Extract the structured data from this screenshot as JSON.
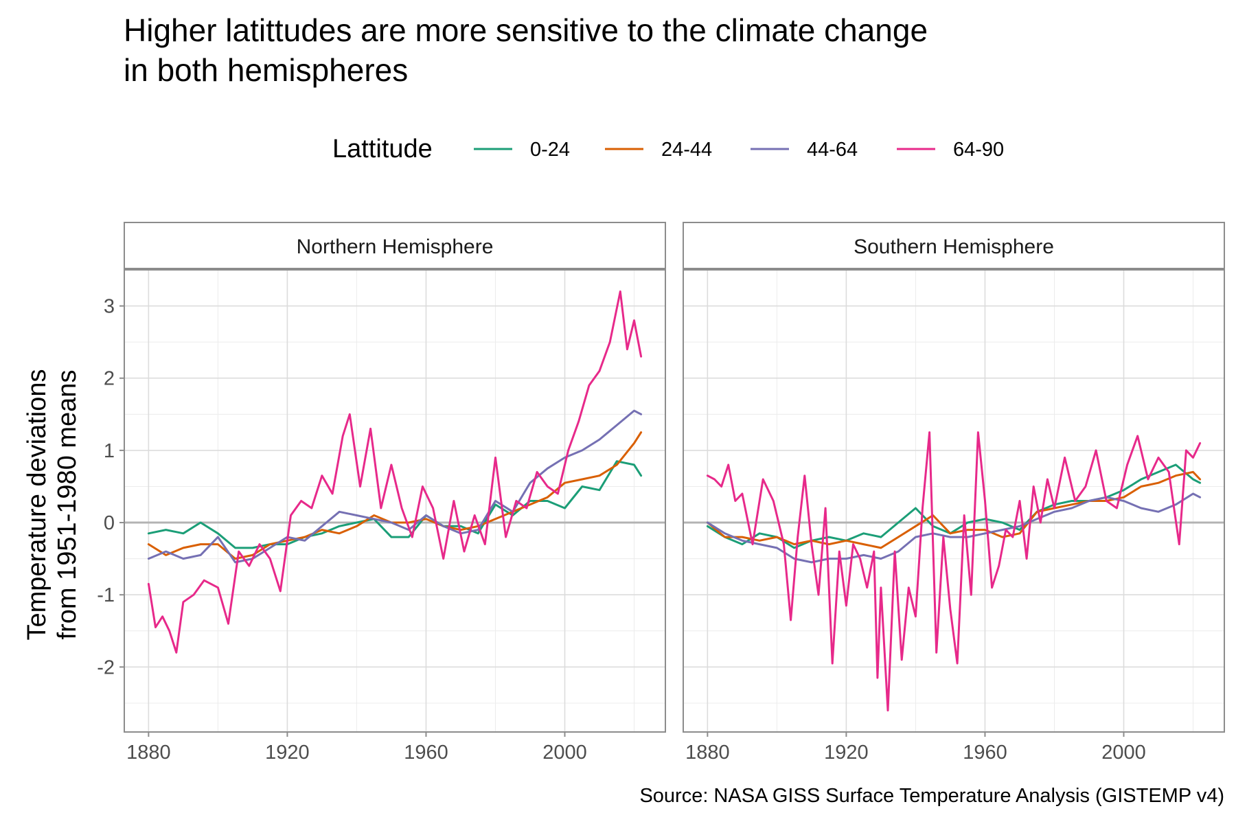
{
  "chart_data": {
    "type": "line",
    "title": [
      "Higher latittudes are more sensitive to the climate change",
      "in both hemispheres"
    ],
    "ylabel": [
      "Temperature deviations",
      "from 1951-1980 means"
    ],
    "xlabel": "",
    "caption": "Source: NASA GISS Surface Temperature Analysis (GISTEMP v4)",
    "legend": {
      "title": "Lattitude",
      "position": "top",
      "entries": [
        "0-24",
        "24-44",
        "44-64",
        "64-90"
      ]
    },
    "colors": {
      "0-24": "#1B9E77",
      "24-44": "#D95F02",
      "44-64": "#7570B3",
      "64-90": "#E7298A"
    },
    "xlim": [
      1873,
      2029
    ],
    "ylim": [
      -2.9,
      3.5
    ],
    "x_ticks": [
      1880,
      1920,
      1960,
      2000
    ],
    "y_ticks": [
      -2,
      -1,
      0,
      1,
      2,
      3
    ],
    "reference_line": 0,
    "grid": true,
    "panels": [
      {
        "name": "Northern Hemisphere",
        "series": [
          {
            "name": "0-24",
            "x": [
              1880,
              1885,
              1890,
              1895,
              1900,
              1905,
              1910,
              1915,
              1920,
              1925,
              1930,
              1935,
              1940,
              1945,
              1950,
              1955,
              1960,
              1965,
              1970,
              1975,
              1980,
              1985,
              1990,
              1995,
              2000,
              2005,
              2010,
              2015,
              2020,
              2022
            ],
            "values": [
              -0.15,
              -0.1,
              -0.15,
              0.0,
              -0.15,
              -0.35,
              -0.35,
              -0.3,
              -0.3,
              -0.2,
              -0.15,
              -0.05,
              0.0,
              0.05,
              -0.2,
              -0.2,
              0.1,
              -0.05,
              -0.05,
              -0.15,
              0.25,
              0.1,
              0.3,
              0.3,
              0.2,
              0.5,
              0.45,
              0.85,
              0.8,
              0.65
            ]
          },
          {
            "name": "24-44",
            "x": [
              1880,
              1885,
              1890,
              1895,
              1900,
              1905,
              1910,
              1915,
              1920,
              1925,
              1930,
              1935,
              1940,
              1945,
              1950,
              1955,
              1960,
              1965,
              1970,
              1975,
              1980,
              1985,
              1990,
              1995,
              2000,
              2005,
              2010,
              2015,
              2020,
              2022
            ],
            "values": [
              -0.3,
              -0.45,
              -0.35,
              -0.3,
              -0.3,
              -0.5,
              -0.45,
              -0.3,
              -0.25,
              -0.2,
              -0.1,
              -0.15,
              -0.05,
              0.1,
              0.0,
              0.0,
              0.05,
              -0.05,
              -0.1,
              -0.05,
              0.05,
              0.15,
              0.25,
              0.35,
              0.55,
              0.6,
              0.65,
              0.8,
              1.1,
              1.25
            ]
          },
          {
            "name": "44-64",
            "x": [
              1880,
              1885,
              1890,
              1895,
              1900,
              1905,
              1910,
              1915,
              1920,
              1925,
              1930,
              1935,
              1940,
              1945,
              1950,
              1955,
              1960,
              1965,
              1970,
              1975,
              1980,
              1985,
              1990,
              1995,
              2000,
              2005,
              2010,
              2015,
              2020,
              2022
            ],
            "values": [
              -0.5,
              -0.4,
              -0.5,
              -0.45,
              -0.2,
              -0.55,
              -0.5,
              -0.35,
              -0.2,
              -0.25,
              -0.05,
              0.15,
              0.1,
              0.05,
              0.0,
              -0.1,
              0.1,
              -0.05,
              -0.15,
              -0.1,
              0.3,
              0.15,
              0.55,
              0.75,
              0.9,
              1.0,
              1.15,
              1.35,
              1.55,
              1.5
            ]
          },
          {
            "name": "64-90",
            "x": [
              1880,
              1882,
              1884,
              1886,
              1888,
              1890,
              1893,
              1896,
              1900,
              1903,
              1906,
              1909,
              1912,
              1915,
              1918,
              1921,
              1924,
              1927,
              1930,
              1933,
              1936,
              1938,
              1941,
              1944,
              1947,
              1950,
              1953,
              1956,
              1959,
              1962,
              1965,
              1968,
              1971,
              1974,
              1977,
              1980,
              1983,
              1986,
              1989,
              1992,
              1995,
              1998,
              2001,
              2004,
              2007,
              2010,
              2013,
              2016,
              2018,
              2020,
              2022
            ],
            "values": [
              -0.85,
              -1.45,
              -1.3,
              -1.5,
              -1.8,
              -1.1,
              -1.0,
              -0.8,
              -0.9,
              -1.4,
              -0.4,
              -0.6,
              -0.3,
              -0.5,
              -0.95,
              0.1,
              0.3,
              0.2,
              0.65,
              0.4,
              1.2,
              1.5,
              0.5,
              1.3,
              0.2,
              0.8,
              0.2,
              -0.2,
              0.5,
              0.2,
              -0.5,
              0.3,
              -0.4,
              0.1,
              -0.3,
              0.9,
              -0.2,
              0.3,
              0.2,
              0.7,
              0.5,
              0.4,
              1.0,
              1.4,
              1.9,
              2.1,
              2.5,
              3.2,
              2.4,
              2.8,
              2.3
            ]
          }
        ]
      },
      {
        "name": "Southern Hemisphere",
        "series": [
          {
            "name": "0-24",
            "x": [
              1880,
              1885,
              1890,
              1895,
              1900,
              1905,
              1910,
              1915,
              1920,
              1925,
              1930,
              1935,
              1940,
              1945,
              1950,
              1955,
              1960,
              1965,
              1970,
              1975,
              1980,
              1985,
              1990,
              1995,
              2000,
              2005,
              2010,
              2015,
              2020,
              2022
            ],
            "values": [
              -0.05,
              -0.2,
              -0.3,
              -0.15,
              -0.2,
              -0.35,
              -0.25,
              -0.2,
              -0.25,
              -0.15,
              -0.2,
              0.0,
              0.2,
              -0.05,
              -0.15,
              0.0,
              0.05,
              0.0,
              -0.1,
              0.15,
              0.25,
              0.3,
              0.3,
              0.35,
              0.45,
              0.6,
              0.7,
              0.8,
              0.6,
              0.55
            ]
          },
          {
            "name": "24-44",
            "x": [
              1880,
              1885,
              1890,
              1895,
              1900,
              1905,
              1910,
              1915,
              1920,
              1925,
              1930,
              1935,
              1940,
              1945,
              1950,
              1955,
              1960,
              1965,
              1970,
              1975,
              1980,
              1985,
              1990,
              1995,
              2000,
              2005,
              2010,
              2015,
              2020,
              2022
            ],
            "values": [
              0.0,
              -0.2,
              -0.2,
              -0.25,
              -0.2,
              -0.3,
              -0.25,
              -0.3,
              -0.25,
              -0.3,
              -0.35,
              -0.2,
              -0.05,
              0.1,
              -0.15,
              -0.1,
              -0.1,
              -0.2,
              -0.15,
              0.15,
              0.2,
              0.25,
              0.3,
              0.3,
              0.35,
              0.5,
              0.55,
              0.65,
              0.7,
              0.6
            ]
          },
          {
            "name": "44-64",
            "x": [
              1880,
              1885,
              1890,
              1895,
              1900,
              1905,
              1910,
              1915,
              1920,
              1925,
              1930,
              1935,
              1940,
              1945,
              1950,
              1955,
              1960,
              1965,
              1970,
              1975,
              1980,
              1985,
              1990,
              1995,
              2000,
              2005,
              2010,
              2015,
              2020,
              2022
            ],
            "values": [
              0.0,
              -0.15,
              -0.25,
              -0.3,
              -0.35,
              -0.5,
              -0.55,
              -0.5,
              -0.5,
              -0.45,
              -0.5,
              -0.4,
              -0.2,
              -0.15,
              -0.2,
              -0.2,
              -0.15,
              -0.1,
              -0.05,
              0.05,
              0.15,
              0.2,
              0.3,
              0.35,
              0.3,
              0.2,
              0.15,
              0.25,
              0.4,
              0.35
            ]
          },
          {
            "name": "64-90",
            "x": [
              1880,
              1882,
              1884,
              1886,
              1888,
              1890,
              1893,
              1896,
              1899,
              1902,
              1904,
              1906,
              1908,
              1910,
              1912,
              1914,
              1916,
              1918,
              1920,
              1922,
              1924,
              1926,
              1928,
              1929,
              1930,
              1932,
              1934,
              1936,
              1938,
              1940,
              1942,
              1944,
              1946,
              1948,
              1950,
              1952,
              1954,
              1956,
              1958,
              1960,
              1962,
              1964,
              1966,
              1968,
              1970,
              1972,
              1974,
              1976,
              1978,
              1980,
              1983,
              1986,
              1989,
              1992,
              1995,
              1998,
              2001,
              2004,
              2007,
              2010,
              2013,
              2016,
              2018,
              2020,
              2022
            ],
            "values": [
              0.65,
              0.6,
              0.5,
              0.8,
              0.3,
              0.4,
              -0.3,
              0.6,
              0.3,
              -0.3,
              -1.35,
              -0.2,
              0.65,
              -0.3,
              -1.0,
              0.2,
              -1.95,
              -0.4,
              -1.15,
              -0.3,
              -0.5,
              -0.9,
              -0.4,
              -2.15,
              -0.9,
              -2.6,
              -0.4,
              -1.9,
              -0.9,
              -1.3,
              0.2,
              1.25,
              -1.8,
              -0.2,
              -1.2,
              -1.95,
              0.1,
              -1.0,
              1.25,
              0.3,
              -0.9,
              -0.6,
              -0.1,
              -0.2,
              0.3,
              -0.5,
              0.5,
              0.0,
              0.6,
              0.2,
              0.9,
              0.3,
              0.5,
              1.0,
              0.3,
              0.2,
              0.8,
              1.2,
              0.6,
              0.9,
              0.7,
              -0.3,
              1.0,
              0.9,
              1.1
            ]
          }
        ]
      }
    ]
  }
}
